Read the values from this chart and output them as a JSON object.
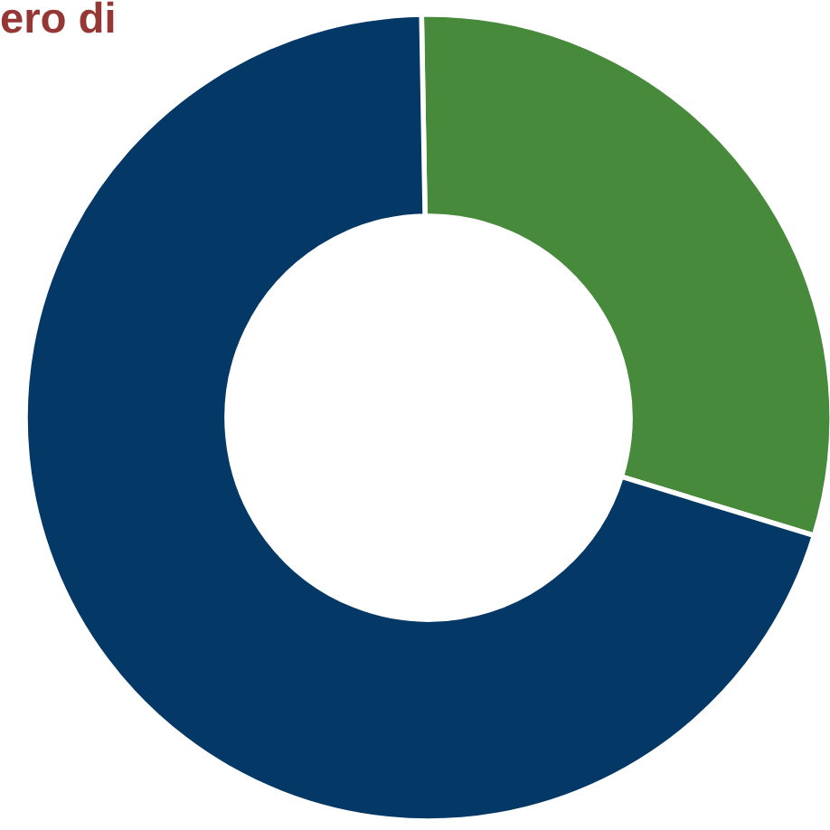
{
  "chart_data": {
    "type": "donut",
    "title": "ero di",
    "categories": [
      null,
      null
    ],
    "values": [
      30,
      70
    ],
    "colors": [
      "#478a3b",
      "#043867"
    ]
  }
}
